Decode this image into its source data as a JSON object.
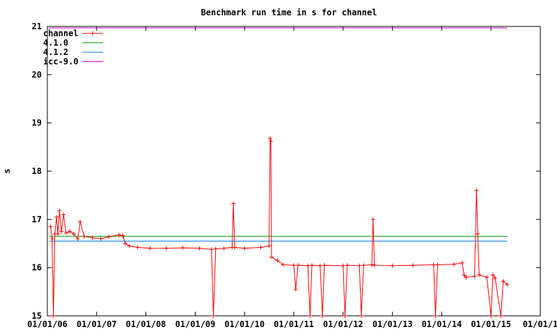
{
  "chart_data": {
    "type": "line",
    "title": "Benchmark run time in s for channel",
    "xlabel": "",
    "ylabel": "s",
    "ylim": [
      15,
      21
    ],
    "yticks": [
      15,
      16,
      17,
      18,
      19,
      20,
      21
    ],
    "xlim": [
      "2006-01-01",
      "2016-01-01"
    ],
    "xticks": [
      {
        "date": "2006-01-01",
        "label": "01/01/06"
      },
      {
        "date": "2007-01-01",
        "label": "01/01/07"
      },
      {
        "date": "2008-01-01",
        "label": "01/01/08"
      },
      {
        "date": "2009-01-01",
        "label": "01/01/09"
      },
      {
        "date": "2010-01-01",
        "label": "01/01/10"
      },
      {
        "date": "2011-01-01",
        "label": "01/01/11"
      },
      {
        "date": "2012-01-01",
        "label": "01/01/12"
      },
      {
        "date": "2013-01-01",
        "label": "01/01/13"
      },
      {
        "date": "2014-01-01",
        "label": "01/01/14"
      },
      {
        "date": "2015-01-01",
        "label": "01/01/15"
      },
      {
        "date": "2016-01-01",
        "label": "01/01/1"
      }
    ],
    "legend_position": "top-left",
    "grid": false,
    "series": [
      {
        "name": "channel",
        "color": "#ff0000",
        "marker": "plus",
        "points": [
          {
            "x": "2006-01-25",
            "y": 16.85
          },
          {
            "x": "2006-02-05",
            "y": 16.6
          },
          {
            "x": "2006-02-15",
            "y": 15.0
          },
          {
            "x": "2006-02-25",
            "y": 16.7
          },
          {
            "x": "2006-03-10",
            "y": 17.05
          },
          {
            "x": "2006-03-20",
            "y": 16.7
          },
          {
            "x": "2006-04-01",
            "y": 17.18
          },
          {
            "x": "2006-04-15",
            "y": 16.75
          },
          {
            "x": "2006-05-01",
            "y": 17.1
          },
          {
            "x": "2006-05-20",
            "y": 16.72
          },
          {
            "x": "2006-06-15",
            "y": 16.75
          },
          {
            "x": "2006-07-15",
            "y": 16.7
          },
          {
            "x": "2006-08-15",
            "y": 16.6
          },
          {
            "x": "2006-09-01",
            "y": 16.95
          },
          {
            "x": "2006-10-01",
            "y": 16.65
          },
          {
            "x": "2006-12-01",
            "y": 16.62
          },
          {
            "x": "2007-02-01",
            "y": 16.6
          },
          {
            "x": "2007-04-01",
            "y": 16.64
          },
          {
            "x": "2007-06-15",
            "y": 16.68
          },
          {
            "x": "2007-07-15",
            "y": 16.66
          },
          {
            "x": "2007-08-01",
            "y": 16.5
          },
          {
            "x": "2007-09-01",
            "y": 16.45
          },
          {
            "x": "2007-11-01",
            "y": 16.42
          },
          {
            "x": "2008-02-01",
            "y": 16.4
          },
          {
            "x": "2008-06-01",
            "y": 16.4
          },
          {
            "x": "2008-10-01",
            "y": 16.41
          },
          {
            "x": "2009-02-01",
            "y": 16.4
          },
          {
            "x": "2009-05-01",
            "y": 16.38
          },
          {
            "x": "2009-05-15",
            "y": 15.0
          },
          {
            "x": "2009-06-01",
            "y": 16.39
          },
          {
            "x": "2009-08-01",
            "y": 16.4
          },
          {
            "x": "2009-10-01",
            "y": 16.42
          },
          {
            "x": "2009-10-10",
            "y": 17.33
          },
          {
            "x": "2009-10-20",
            "y": 16.42
          },
          {
            "x": "2010-01-01",
            "y": 16.4
          },
          {
            "x": "2010-05-01",
            "y": 16.42
          },
          {
            "x": "2010-07-01",
            "y": 16.45
          },
          {
            "x": "2010-07-10",
            "y": 18.68
          },
          {
            "x": "2010-07-15",
            "y": 18.62
          },
          {
            "x": "2010-07-20",
            "y": 16.22
          },
          {
            "x": "2010-09-01",
            "y": 16.15
          },
          {
            "x": "2010-10-15",
            "y": 16.06
          },
          {
            "x": "2011-01-01",
            "y": 16.05
          },
          {
            "x": "2011-01-15",
            "y": 15.55
          },
          {
            "x": "2011-02-01",
            "y": 16.05
          },
          {
            "x": "2011-04-15",
            "y": 16.04
          },
          {
            "x": "2011-05-01",
            "y": 15.0
          },
          {
            "x": "2011-05-15",
            "y": 16.05
          },
          {
            "x": "2011-07-15",
            "y": 16.04
          },
          {
            "x": "2011-08-01",
            "y": 15.0
          },
          {
            "x": "2011-08-15",
            "y": 16.05
          },
          {
            "x": "2012-01-01",
            "y": 16.04
          },
          {
            "x": "2012-01-15",
            "y": 15.0
          },
          {
            "x": "2012-02-01",
            "y": 16.05
          },
          {
            "x": "2012-05-01",
            "y": 16.04
          },
          {
            "x": "2012-05-15",
            "y": 15.0
          },
          {
            "x": "2012-06-01",
            "y": 16.05
          },
          {
            "x": "2012-08-01",
            "y": 16.06
          },
          {
            "x": "2012-08-10",
            "y": 17.0
          },
          {
            "x": "2012-08-20",
            "y": 16.05
          },
          {
            "x": "2013-01-01",
            "y": 16.04
          },
          {
            "x": "2013-06-01",
            "y": 16.05
          },
          {
            "x": "2013-11-01",
            "y": 16.06
          },
          {
            "x": "2013-11-15",
            "y": 15.0
          },
          {
            "x": "2013-12-01",
            "y": 16.06
          },
          {
            "x": "2014-04-01",
            "y": 16.07
          },
          {
            "x": "2014-06-01",
            "y": 16.1
          },
          {
            "x": "2014-06-15",
            "y": 15.85
          },
          {
            "x": "2014-07-01",
            "y": 15.8
          },
          {
            "x": "2014-09-01",
            "y": 15.82
          },
          {
            "x": "2014-09-15",
            "y": 17.6
          },
          {
            "x": "2014-09-25",
            "y": 16.7
          },
          {
            "x": "2014-10-05",
            "y": 15.85
          },
          {
            "x": "2014-12-01",
            "y": 15.8
          },
          {
            "x": "2015-01-01",
            "y": 15.0
          },
          {
            "x": "2015-01-15",
            "y": 15.85
          },
          {
            "x": "2015-02-01",
            "y": 15.78
          },
          {
            "x": "2015-03-15",
            "y": 15.0
          },
          {
            "x": "2015-04-01",
            "y": 15.72
          },
          {
            "x": "2015-05-01",
            "y": 15.65
          }
        ]
      },
      {
        "name": "4.1.0",
        "color": "#00a000",
        "type": "hline",
        "value": 16.65,
        "x_start": "2006-01-15",
        "x_end": "2015-05-01"
      },
      {
        "name": "4.1.2",
        "color": "#0080ff",
        "type": "hline",
        "value": 16.55,
        "x_start": "2006-01-15",
        "x_end": "2015-05-01"
      },
      {
        "name": "icc-9.0",
        "color": "#c000c0",
        "type": "hline",
        "value": 20.97,
        "x_start": "2006-01-15",
        "x_end": "2015-05-01"
      }
    ]
  }
}
